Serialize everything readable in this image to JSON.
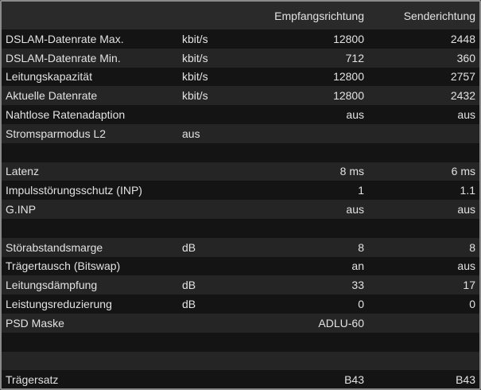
{
  "header": {
    "col1": "",
    "col2": "",
    "col3": "Empfangsrichtung",
    "col4": "Senderichtung"
  },
  "rows": [
    {
      "label": "DSLAM-Datenrate Max.",
      "unit": "kbit/s",
      "rx": "12800",
      "tx": "2448"
    },
    {
      "label": "DSLAM-Datenrate Min.",
      "unit": "kbit/s",
      "rx": "712",
      "tx": "360"
    },
    {
      "label": "Leitungskapazität",
      "unit": "kbit/s",
      "rx": "12800",
      "tx": "2757"
    },
    {
      "label": "Aktuelle Datenrate",
      "unit": "kbit/s",
      "rx": "12800",
      "tx": "2432"
    },
    {
      "label": "Nahtlose Ratenadaption",
      "unit": "",
      "rx": "aus",
      "tx": "aus"
    },
    {
      "label": "Stromsparmodus L2",
      "unit": "aus",
      "rx": "",
      "tx": ""
    },
    {
      "label": "",
      "unit": "",
      "rx": "",
      "tx": ""
    },
    {
      "label": "Latenz",
      "unit": "",
      "rx": "8 ms",
      "tx": "6 ms"
    },
    {
      "label": "Impulsstörungsschutz (INP)",
      "unit": "",
      "rx": "1",
      "tx": "1.1"
    },
    {
      "label": "G.INP",
      "unit": "",
      "rx": "aus",
      "tx": "aus"
    },
    {
      "label": "",
      "unit": "",
      "rx": "",
      "tx": ""
    },
    {
      "label": "Störabstandsmarge",
      "unit": "dB",
      "rx": "8",
      "tx": "8"
    },
    {
      "label": "Trägertausch (Bitswap)",
      "unit": "",
      "rx": "an",
      "tx": "aus"
    },
    {
      "label": "Leitungsdämpfung",
      "unit": "dB",
      "rx": "33",
      "tx": "17"
    },
    {
      "label": "Leistungsreduzierung",
      "unit": "dB",
      "rx": "0",
      "tx": "0"
    },
    {
      "label": "PSD Maske",
      "unit": "",
      "rx": "ADLU-60",
      "tx": ""
    },
    {
      "label": "",
      "unit": "",
      "rx": "",
      "tx": ""
    },
    {
      "label": "",
      "unit": "",
      "rx": "",
      "tx": ""
    },
    {
      "label": "Trägersatz",
      "unit": "",
      "rx": "B43",
      "tx": "B43"
    }
  ]
}
